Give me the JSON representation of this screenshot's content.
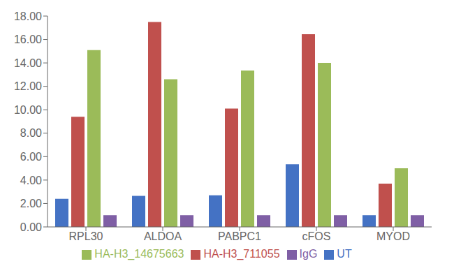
{
  "chart_data": {
    "type": "bar",
    "categories": [
      "RPL30",
      "ALDOA",
      "PABPC1",
      "cFOS",
      "MYOD"
    ],
    "series": [
      {
        "name": "UT",
        "color": "#4472C4",
        "values": [
          2.4,
          2.65,
          2.7,
          5.35,
          1.0
        ]
      },
      {
        "name": "HA-H3_711055",
        "color": "#C0504D",
        "values": [
          9.4,
          17.5,
          10.1,
          16.45,
          3.7
        ]
      },
      {
        "name": "HA-H3_14675663",
        "color": "#9BBB59",
        "values": [
          15.1,
          12.6,
          13.35,
          14.0,
          5.0
        ]
      },
      {
        "name": "IgG",
        "color": "#7F5FA5",
        "values": [
          1.0,
          1.0,
          1.0,
          1.0,
          1.0
        ]
      }
    ],
    "ylim": [
      0,
      18.0
    ],
    "yticks": [
      {
        "value": 0.0,
        "label": "0.00"
      },
      {
        "value": 2.0,
        "label": "2.00"
      },
      {
        "value": 4.0,
        "label": "4.00"
      },
      {
        "value": 6.0,
        "label": "6.00"
      },
      {
        "value": 8.0,
        "label": "8.00"
      },
      {
        "value": 10.0,
        "label": "10.00"
      },
      {
        "value": 12.0,
        "label": "12.00"
      },
      {
        "value": 14.0,
        "label": "14.00"
      },
      {
        "value": 16.0,
        "label": "16.00"
      },
      {
        "value": 18.0,
        "label": "18.00"
      }
    ],
    "grid": false,
    "legend": "bottom"
  }
}
